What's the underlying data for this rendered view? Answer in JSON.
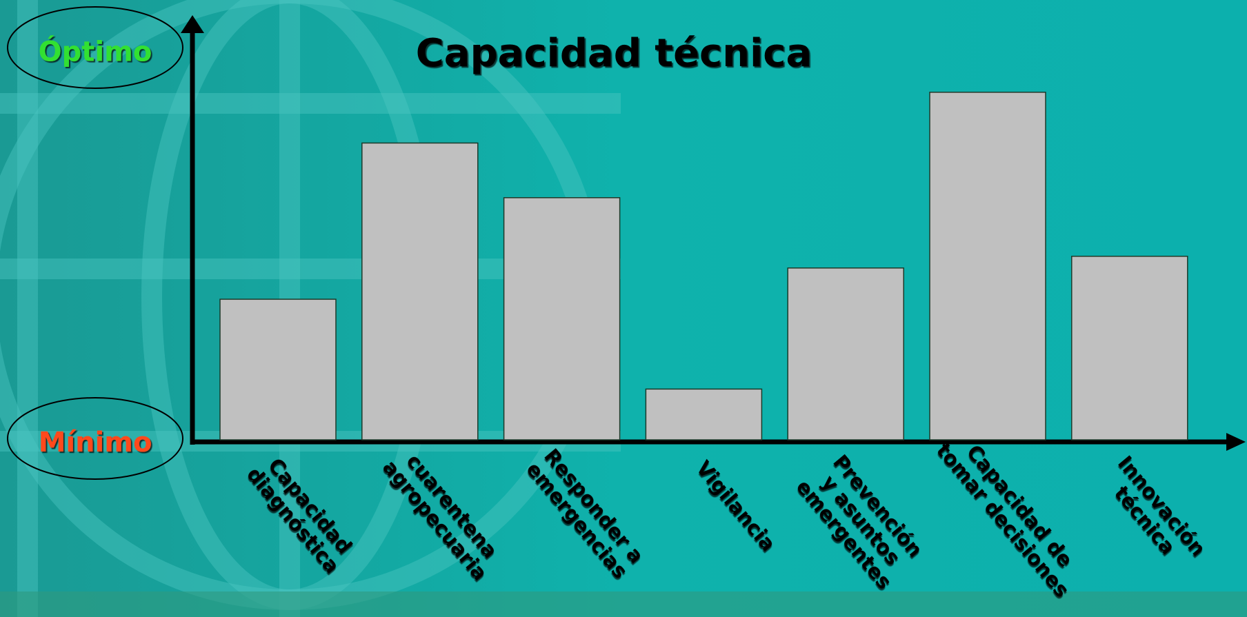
{
  "chart_data": {
    "type": "bar",
    "title": "Capacidad técnica",
    "categories": [
      [
        "Capacidad",
        "diagnóstica"
      ],
      [
        "cuarentena",
        "agropecuaria"
      ],
      [
        "Responder a",
        "emergencias"
      ],
      [
        "Vigilancia"
      ],
      [
        "Prevención",
        "y asuntos",
        "emergentes"
      ],
      [
        "Capacidad de",
        "tomar decisiones"
      ],
      [
        "Innovación",
        "técnica"
      ]
    ],
    "values": [
      36,
      76,
      62,
      13,
      44,
      89,
      47
    ],
    "color": "#c0c0c0",
    "ylim": [
      0,
      100
    ],
    "yticks": [
      {
        "value": 0,
        "label": "Mínimo"
      },
      {
        "value": 100,
        "label": "Óptimo"
      }
    ]
  }
}
